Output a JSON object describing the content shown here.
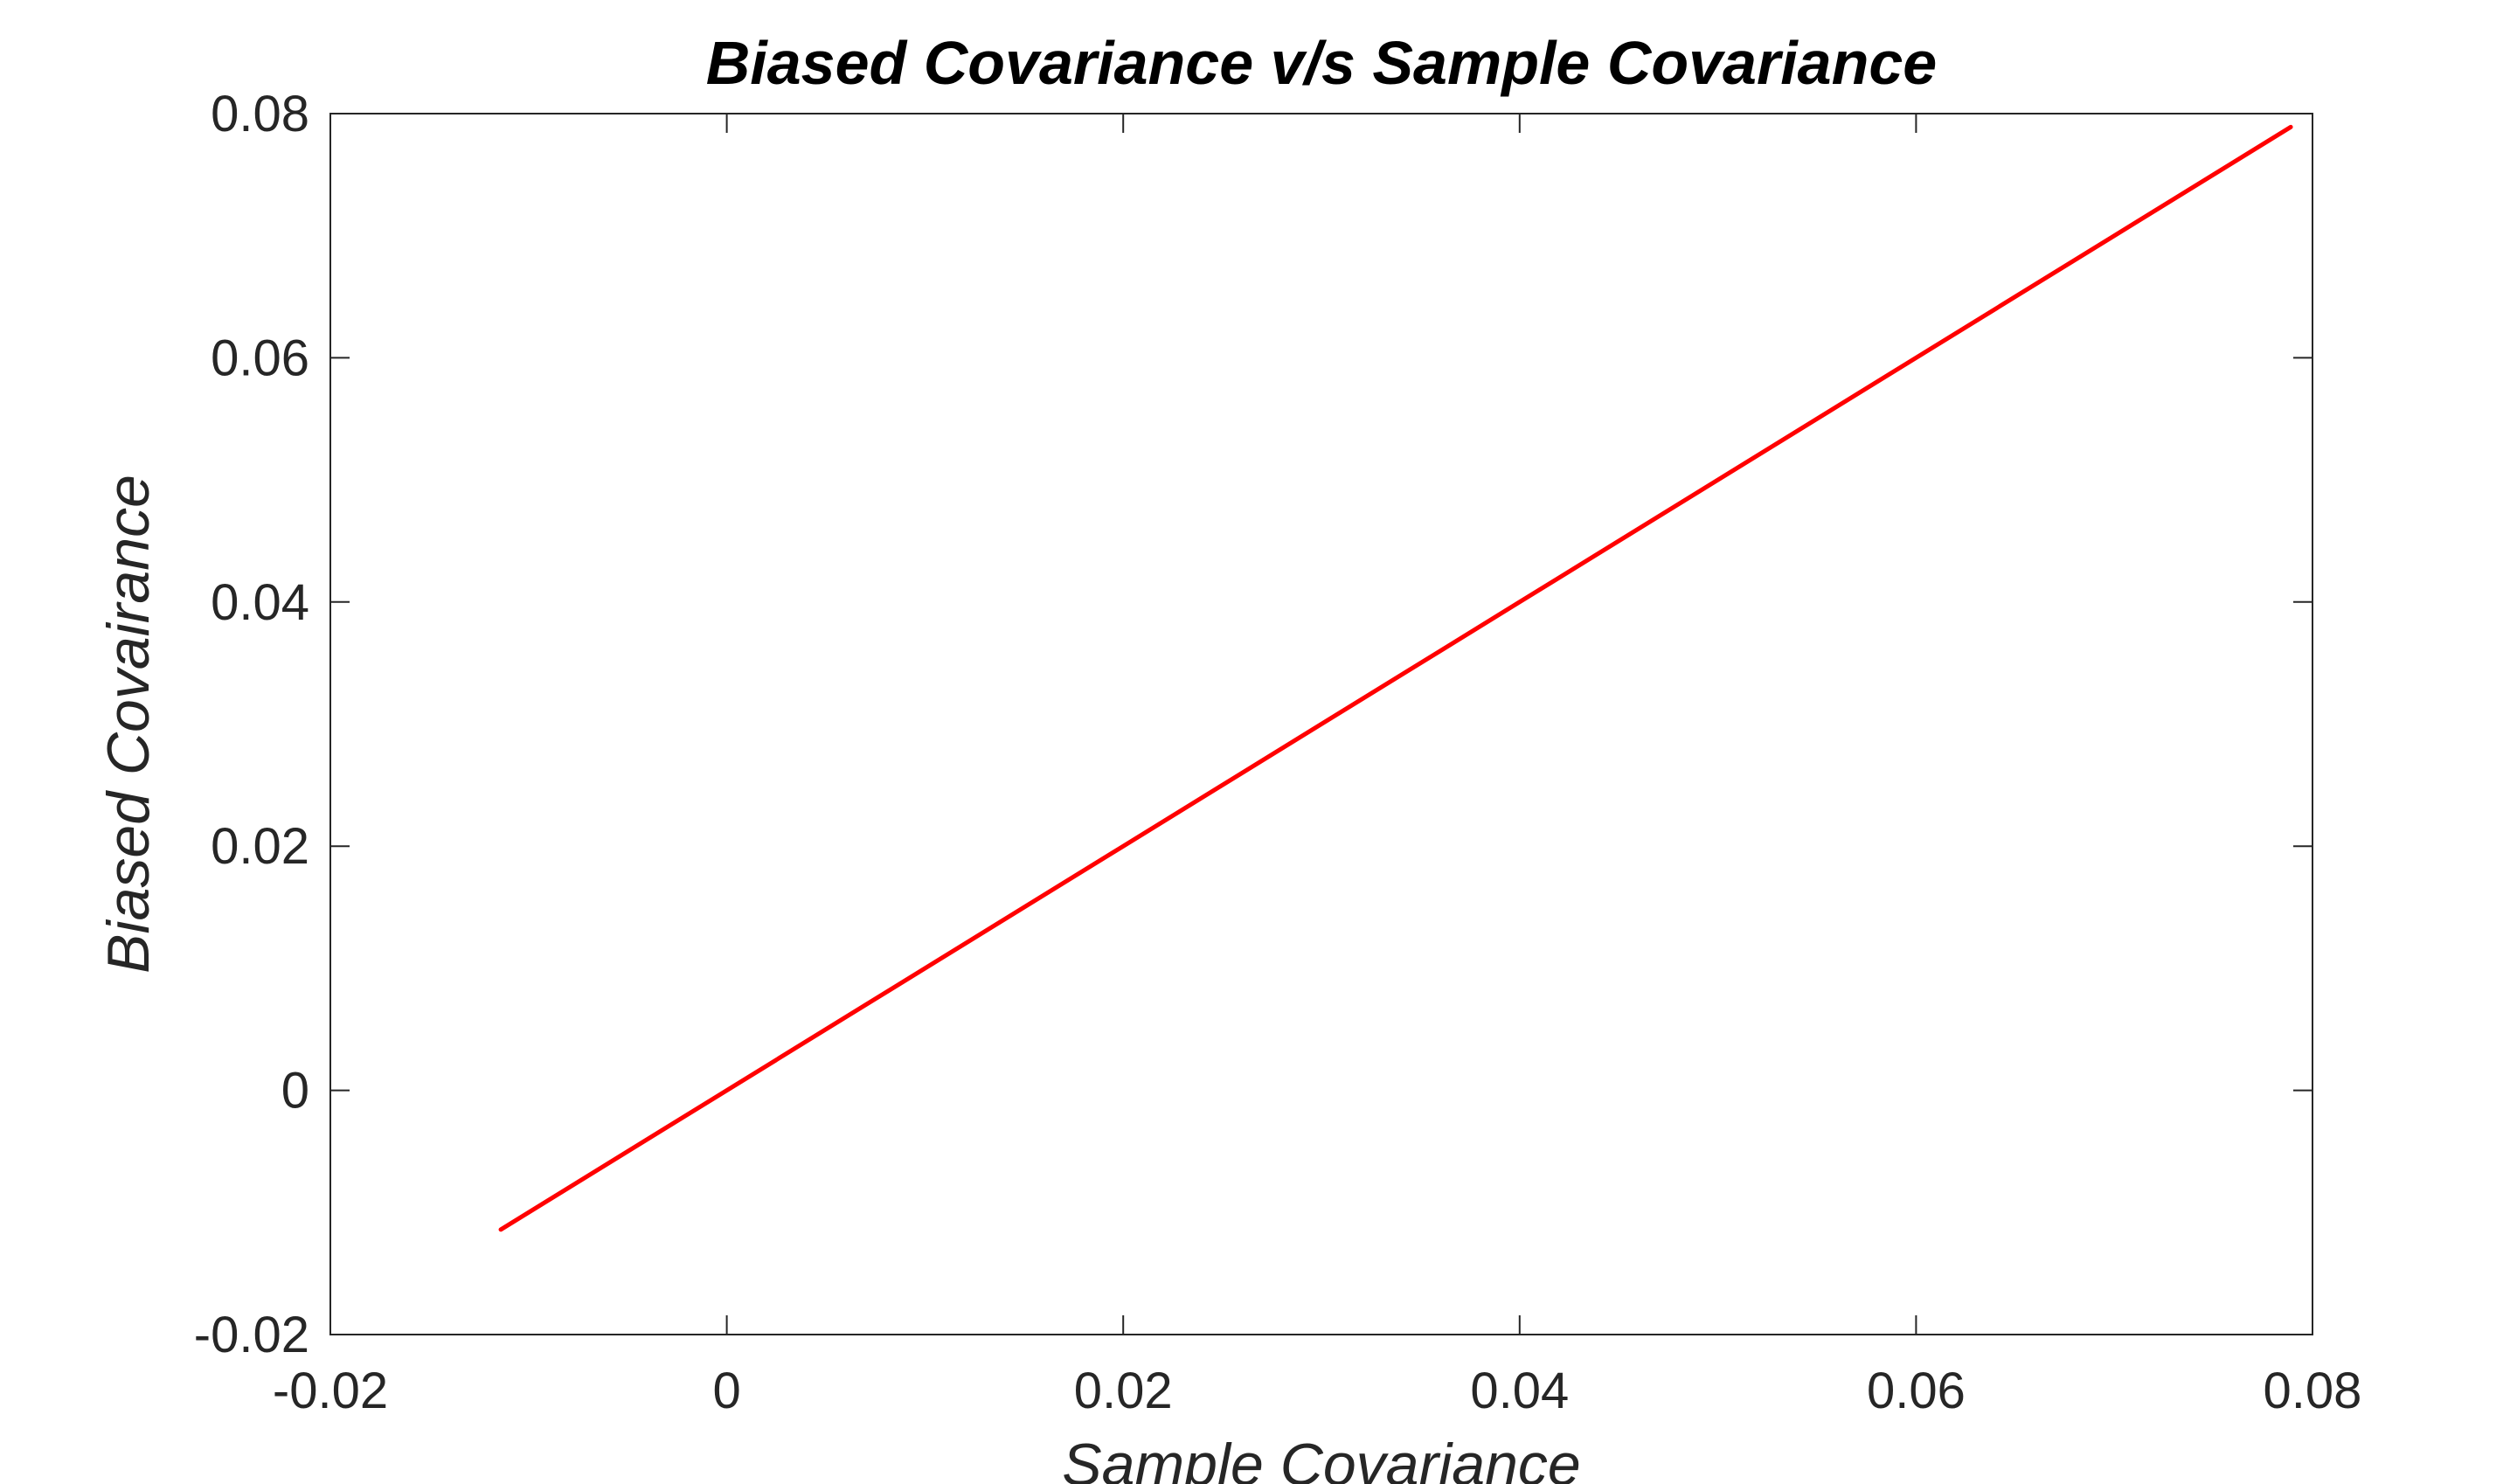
{
  "chart_data": {
    "type": "line",
    "title": "Biased Covariance v/s Sample Covariance",
    "xlabel": "Sample Covariance",
    "ylabel": "Biased Covairance",
    "xlim": [
      -0.02,
      0.08
    ],
    "ylim": [
      -0.02,
      0.08
    ],
    "xticks": [
      -0.02,
      0,
      0.02,
      0.04,
      0.06,
      0.08
    ],
    "yticks": [
      -0.02,
      0,
      0.02,
      0.04,
      0.06,
      0.08
    ],
    "xtick_labels": [
      "-0.02",
      "0",
      "0.02",
      "0.04",
      "0.06",
      "0.08"
    ],
    "ytick_labels": [
      "-0.02",
      "0",
      "0.02",
      "0.04",
      "0.06",
      "0.08"
    ],
    "grid": false,
    "series": [
      {
        "color": "#ff0000",
        "x": [
          -0.0114,
          0.0,
          0.02,
          0.04,
          0.06,
          0.0789
        ],
        "y": [
          -0.0114,
          0.0,
          0.02,
          0.04,
          0.06,
          0.0789
        ]
      }
    ]
  }
}
